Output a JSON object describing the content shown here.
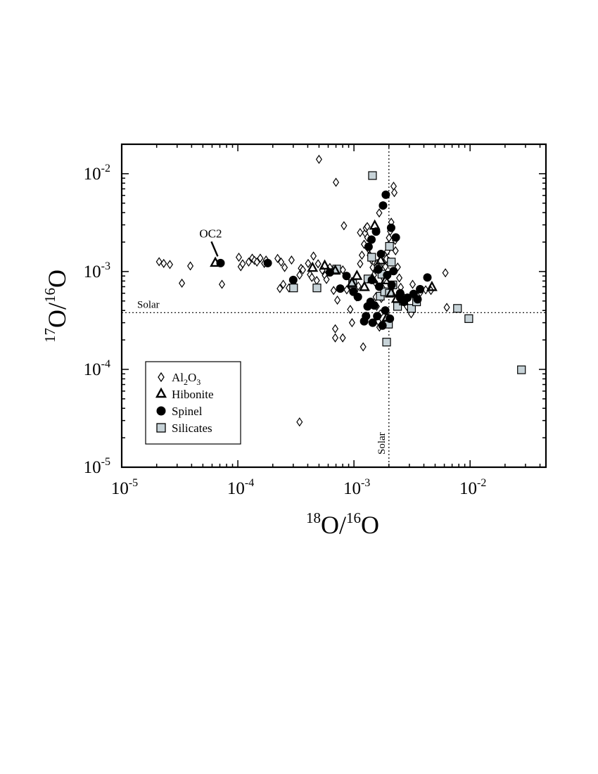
{
  "chart_data": {
    "type": "scatter",
    "title": "",
    "xlabel": "18O/16O",
    "ylabel": "17O/16O",
    "x_scale": "log",
    "y_scale": "log",
    "xlim": [
      1e-05,
      0.045
    ],
    "ylim": [
      1e-05,
      0.02
    ],
    "x_ticks": [
      {
        "value": 1e-05,
        "base": "10",
        "exp": "-5"
      },
      {
        "value": 0.0001,
        "base": "10",
        "exp": "-4"
      },
      {
        "value": 0.001,
        "base": "10",
        "exp": "-3"
      },
      {
        "value": 0.01,
        "base": "10",
        "exp": "-2"
      }
    ],
    "y_ticks": [
      {
        "value": 1e-05,
        "base": "10",
        "exp": "-5"
      },
      {
        "value": 0.0001,
        "base": "10",
        "exp": "-4"
      },
      {
        "value": 0.001,
        "base": "10",
        "exp": "-3"
      },
      {
        "value": 0.01,
        "base": "10",
        "exp": "-2"
      }
    ],
    "grid": false,
    "legend_position": "bottom-left",
    "reference_lines": [
      {
        "axis": "y",
        "value": 0.00038,
        "label": "Solar"
      },
      {
        "axis": "x",
        "value": 0.002,
        "label": "Solar"
      }
    ],
    "annotations": [
      {
        "text": "OC2",
        "x": 6.9e-05,
        "y": 0.00123
      }
    ],
    "series": [
      {
        "name": "Al2O3",
        "marker": "diamond-open",
        "points": [
          [
            2.1e-05,
            0.00126
          ],
          [
            2.3e-05,
            0.00121
          ],
          [
            2.6e-05,
            0.00118
          ],
          [
            3.3e-05,
            0.00076
          ],
          [
            3.9e-05,
            0.00114
          ],
          [
            7.3e-05,
            0.00074
          ],
          [
            0.000102,
            0.0014
          ],
          [
            0.000106,
            0.00112
          ],
          [
            0.00011,
            0.0012
          ],
          [
            0.000124,
            0.00125
          ],
          [
            0.000133,
            0.00137
          ],
          [
            0.000139,
            0.0013
          ],
          [
            0.000146,
            0.00125
          ],
          [
            0.000156,
            0.00137
          ],
          [
            0.000169,
            0.00121
          ],
          [
            0.000175,
            0.00131
          ],
          [
            0.00022,
            0.00136
          ],
          [
            0.000236,
            0.00125
          ],
          [
            0.000253,
            0.0011
          ],
          [
            0.00029,
            0.00131
          ],
          [
            0.00023,
            0.00067
          ],
          [
            0.000246,
            0.00074
          ],
          [
            0.000275,
            0.00068
          ],
          [
            0.000303,
            0.00074
          ],
          [
            0.00034,
            0.00092
          ],
          [
            0.00035,
            0.00108
          ],
          [
            0.000363,
            0.00104
          ],
          [
            0.000403,
            0.00121
          ],
          [
            0.000419,
            0.00093
          ],
          [
            0.000434,
            0.00087
          ],
          [
            0.000448,
            0.00144
          ],
          [
            0.000478,
            0.00081
          ],
          [
            0.000491,
            0.0012
          ],
          [
            0.000534,
            0.00103
          ],
          [
            0.000563,
            0.00091
          ],
          [
            0.00058,
            0.00083
          ],
          [
            0.00062,
            0.0011
          ],
          [
            0.000668,
            0.00064
          ],
          [
            0.00072,
            0.00051
          ],
          [
            0.000802,
            0.00104
          ],
          [
            0.00082,
            0.00294
          ],
          [
            0.000867,
            0.00065
          ],
          [
            0.000929,
            0.00041
          ],
          [
            0.000963,
            0.0003
          ],
          [
            0.001023,
            0.00063
          ],
          [
            0.001053,
            0.00055
          ],
          [
            0.00109,
            0.00071
          ],
          [
            0.001131,
            0.0012
          ],
          [
            0.001171,
            0.00147
          ],
          [
            0.001222,
            0.0019
          ],
          [
            0.001248,
            0.00247
          ],
          [
            0.001268,
            0.00278
          ],
          [
            0.001302,
            0.00288
          ],
          [
            0.001304,
            0.00223
          ],
          [
            0.001333,
            0.0017
          ],
          [
            0.001372,
            0.00146
          ],
          [
            0.001412,
            0.00132
          ],
          [
            0.001451,
            0.0011
          ],
          [
            0.001483,
            0.00092
          ],
          [
            0.001519,
            0.00078
          ],
          [
            0.001541,
            0.00055
          ],
          [
            0.00157,
            0.00044
          ],
          [
            0.001619,
            0.00031
          ],
          [
            0.001657,
            0.00027
          ],
          [
            0.001689,
            0.00037
          ],
          [
            0.00172,
            0.00053
          ],
          [
            0.001776,
            0.00067
          ],
          [
            0.001812,
            0.00084
          ],
          [
            0.001866,
            0.00112
          ],
          [
            0.001902,
            0.00135
          ],
          [
            0.001935,
            0.00161
          ],
          [
            0.001983,
            0.00186
          ],
          [
            0.002004,
            0.00221
          ],
          [
            0.002053,
            0.00258
          ],
          [
            0.00213,
            0.00286
          ],
          [
            0.002095,
            0.00319
          ],
          [
            0.002195,
            0.00744
          ],
          [
            0.002227,
            0.00641
          ],
          [
            0.002262,
            0.00208
          ],
          [
            0.00228,
            0.00163
          ],
          [
            0.002381,
            0.00111
          ],
          [
            0.002457,
            0.00086
          ],
          [
            0.002527,
            0.00069
          ],
          [
            0.0026,
            0.00058
          ],
          [
            0.00267,
            0.0005
          ],
          [
            0.00286,
            0.00044
          ],
          [
            0.00311,
            0.00037
          ],
          [
            0.00342,
            0.00052
          ],
          [
            0.00373,
            0.00061
          ],
          [
            0.00415,
            0.00065
          ],
          [
            0.00613,
            0.00097
          ],
          [
            0.0005,
            0.01403
          ],
          [
            0.0007,
            0.00817
          ],
          [
            0.00165,
            0.00397
          ],
          [
            0.00113,
            0.0025
          ],
          [
            0.00069,
            0.00026
          ],
          [
            0.00069,
            0.00021
          ],
          [
            0.0008,
            0.00021
          ],
          [
            0.0012,
            0.00017
          ],
          [
            0.00034,
            2.9e-05
          ],
          [
            0.0063,
            0.00043
          ],
          [
            0.0046,
            0.00064
          ],
          [
            0.0032,
            0.00074
          ],
          [
            0.00095,
            0.00069
          ],
          [
            0.00158,
            0.00121
          ]
        ]
      },
      {
        "name": "Hibonite",
        "marker": "triangle-open",
        "points": [
          [
            6.4e-05,
            0.00124
          ],
          [
            0.00044,
            0.0011
          ],
          [
            0.00056,
            0.00116
          ],
          [
            0.00069,
            0.00103
          ],
          [
            0.00096,
            0.00077
          ],
          [
            0.00106,
            0.00091
          ],
          [
            0.00123,
            0.0007
          ],
          [
            0.00144,
            0.00084
          ],
          [
            0.00151,
            0.00297
          ],
          [
            0.0017,
            0.00131
          ],
          [
            0.00187,
            0.00082
          ],
          [
            0.00209,
            0.00061
          ],
          [
            0.00233,
            0.00053
          ],
          [
            0.00469,
            0.0007
          ],
          [
            0.00192,
            0.00034
          ]
        ]
      },
      {
        "name": "Spinel",
        "marker": "circle-filled",
        "points": [
          [
            7.1e-05,
            0.00122
          ],
          [
            0.000181,
            0.00122
          ],
          [
            0.0003,
            0.00082
          ],
          [
            0.00062,
            0.00098
          ],
          [
            0.000762,
            0.00067
          ],
          [
            0.000863,
            0.0009
          ],
          [
            0.00099,
            0.00062
          ],
          [
            0.001081,
            0.00055
          ],
          [
            0.001224,
            0.00031
          ],
          [
            0.00131,
            0.00044
          ],
          [
            0.001336,
            0.00179
          ],
          [
            0.001415,
            0.00212
          ],
          [
            0.001428,
            0.00082
          ],
          [
            0.001497,
            0.00045
          ],
          [
            0.001586,
            0.00035
          ],
          [
            0.001619,
            0.00105
          ],
          [
            0.00171,
            0.00151
          ],
          [
            0.00178,
            0.00473
          ],
          [
            0.00188,
            0.0061
          ],
          [
            0.001932,
            0.00092
          ],
          [
            0.002039,
            0.00033
          ],
          [
            0.002089,
            0.0028
          ],
          [
            0.00211,
            0.00073
          ],
          [
            0.002294,
            0.00223
          ],
          [
            0.0025,
            0.0006
          ],
          [
            0.002694,
            0.00049
          ],
          [
            0.00289,
            0.00054
          ],
          [
            0.00326,
            0.00059
          ],
          [
            0.00371,
            0.00066
          ],
          [
            0.00429,
            0.00087
          ],
          [
            0.00127,
            0.00035
          ],
          [
            0.00139,
            0.00049
          ],
          [
            0.00145,
            0.0003
          ],
          [
            0.00176,
            0.00028
          ],
          [
            0.00186,
            0.0004
          ],
          [
            0.00165,
            0.0007
          ],
          [
            0.00219,
            0.00101
          ],
          [
            0.0025,
            0.00054
          ],
          [
            0.00353,
            0.00052
          ],
          [
            0.00155,
            0.00256
          ]
        ]
      },
      {
        "name": "Silicates",
        "marker": "square-gray",
        "points": [
          [
            0.000302,
            0.00068
          ],
          [
            0.00048,
            0.00068
          ],
          [
            0.00071,
            0.00106
          ],
          [
            0.000974,
            0.00075
          ],
          [
            0.00132,
            0.00084
          ],
          [
            0.001444,
            0.00957
          ],
          [
            0.001621,
            0.00106
          ],
          [
            0.001686,
            0.00056
          ],
          [
            0.001838,
            0.00062
          ],
          [
            0.001911,
            0.00019
          ],
          [
            0.001982,
            0.00029
          ],
          [
            0.002023,
            0.00181
          ],
          [
            0.002098,
            0.00125
          ],
          [
            0.002162,
            0.00073
          ],
          [
            0.002374,
            0.00044
          ],
          [
            0.002662,
            0.0005
          ],
          [
            0.003129,
            0.00042
          ],
          [
            0.00346,
            0.00049
          ],
          [
            0.00779,
            0.00042
          ],
          [
            0.00975,
            0.00033
          ],
          [
            0.0277,
            9.9e-05
          ],
          [
            0.00142,
            0.0014
          ],
          [
            0.00174,
            0.00094
          ],
          [
            0.00202,
            0.0006
          ]
        ]
      }
    ]
  },
  "legend": [
    {
      "key": "al2o3",
      "base": "Al",
      "sub1": "2",
      "mid": "O",
      "sub2": "3"
    },
    {
      "key": "hibonite",
      "label": "Hibonite"
    },
    {
      "key": "spinel",
      "label": "Spinel"
    },
    {
      "key": "silicates",
      "label": "Silicates"
    }
  ],
  "colors": {
    "axis": "#000000",
    "open_marker_fill": "#ffffff",
    "spinel_fill": "#000000",
    "silicates_fill": "#c6d2d7"
  }
}
